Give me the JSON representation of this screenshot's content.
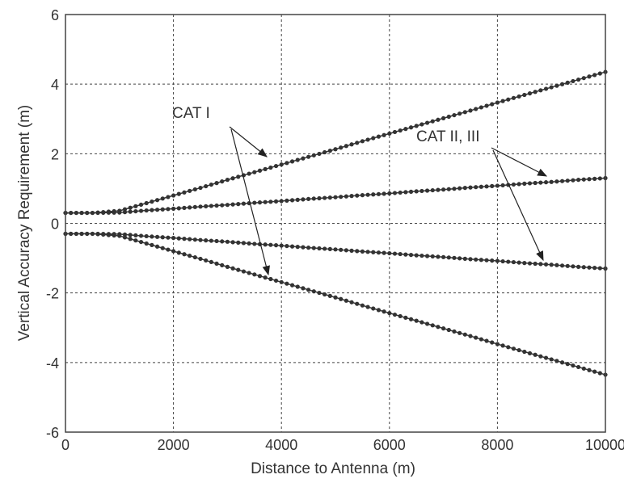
{
  "chart_data": {
    "type": "line",
    "title": "",
    "xlabel": "Distance to Antenna (m)",
    "ylabel": "Vertical Accuracy Requirement (m)",
    "xlim": [
      0,
      10000
    ],
    "ylim": [
      -6,
      6
    ],
    "xticks": [
      "0",
      "2000",
      "4000",
      "6000",
      "8000",
      "10000"
    ],
    "yticks": [
      "-6",
      "-4",
      "-2",
      "0",
      "2",
      "4",
      "6"
    ],
    "grid": true,
    "legend": "none",
    "marker": "dot",
    "color": "#333333",
    "x": [
      0,
      500,
      1000,
      1500,
      2000,
      2500,
      3000,
      3500,
      4000,
      4500,
      5000,
      5500,
      6000,
      6500,
      7000,
      7500,
      8000,
      8500,
      9000,
      9500,
      10000
    ],
    "series": [
      {
        "values": [
          0.3,
          0.3,
          0.36,
          0.58,
          0.8,
          1.02,
          1.25,
          1.47,
          1.69,
          1.91,
          2.13,
          2.36,
          2.58,
          2.8,
          3.02,
          3.24,
          3.47,
          3.69,
          3.91,
          4.13,
          4.35
        ]
      },
      {
        "values": [
          0.3,
          0.3,
          0.31,
          0.37,
          0.42,
          0.48,
          0.53,
          0.59,
          0.64,
          0.7,
          0.75,
          0.81,
          0.86,
          0.92,
          0.97,
          1.03,
          1.08,
          1.14,
          1.19,
          1.25,
          1.3
        ]
      },
      {
        "values": [
          -0.3,
          -0.3,
          -0.31,
          -0.37,
          -0.42,
          -0.48,
          -0.53,
          -0.59,
          -0.64,
          -0.7,
          -0.75,
          -0.81,
          -0.86,
          -0.92,
          -0.97,
          -1.03,
          -1.08,
          -1.14,
          -1.19,
          -1.25,
          -1.3
        ]
      },
      {
        "values": [
          -0.3,
          -0.3,
          -0.36,
          -0.58,
          -0.8,
          -1.02,
          -1.25,
          -1.47,
          -1.69,
          -1.91,
          -2.13,
          -2.36,
          -2.58,
          -2.8,
          -3.02,
          -3.24,
          -3.47,
          -3.69,
          -3.91,
          -4.13,
          -4.35
        ]
      }
    ],
    "annotations": [
      {
        "text": "CAT I"
      },
      {
        "text": "CAT II, III"
      }
    ]
  }
}
